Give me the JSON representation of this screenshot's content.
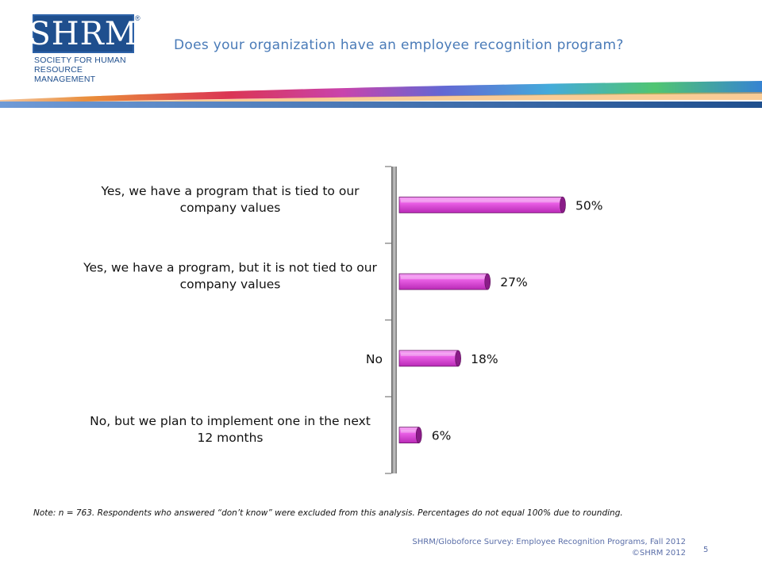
{
  "logo": {
    "word": "SHRM",
    "registered": "®",
    "subtitle_line1": "Society for Human",
    "subtitle_line2": "Resource Management"
  },
  "header": {
    "title": "Does your organization have an employee recognition program?"
  },
  "colors": {
    "bar_light": "#f07df0",
    "bar_mid": "#d43fcf",
    "bar_dark": "#8a1c88",
    "axis": "#6d6d6d",
    "title": "#4a7bb8",
    "footer": "#5a6ea8"
  },
  "chart_data": {
    "type": "bar",
    "orientation": "horizontal",
    "title": "",
    "xlabel": "",
    "ylabel": "",
    "xlim": [
      0,
      100
    ],
    "grid": false,
    "legend": "none",
    "categories": [
      [
        "Yes, we have a program that is tied  to our",
        "company values"
      ],
      [
        "Yes, we have a program, but it is not tied to our",
        "company values"
      ],
      [
        "No"
      ],
      [
        "No, but we plan to implement one in the next",
        "12 months"
      ]
    ],
    "values": [
      50,
      27,
      18,
      6
    ],
    "value_labels": [
      "50%",
      "27%",
      "18%",
      "6%"
    ]
  },
  "footer": {
    "note": "Note: n = 763. Respondents who answered “don’t know” were excluded from this analysis. Percentages do not equal 100% due to rounding.",
    "source_line1": "SHRM/Globoforce Survey: Employee Recognition Programs, Fall 2012",
    "source_line2": "©SHRM 2012",
    "page_number": "5"
  }
}
